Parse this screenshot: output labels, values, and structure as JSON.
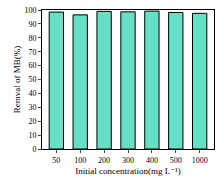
{
  "chart_data": {
    "type": "bar",
    "x_label": "Initial concentration(mg L⁻¹)",
    "y_label": "Remval of MB(%)",
    "categories": [
      "50",
      "100",
      "200",
      "300",
      "400",
      "500",
      "1000"
    ],
    "values": [
      98.5,
      96.5,
      99,
      98.7,
      99.2,
      98.2,
      97.6
    ],
    "color": "#66e0c4",
    "ylim": [
      0,
      100
    ],
    "yticks": [
      0,
      10,
      20,
      30,
      40,
      50,
      60,
      70,
      80,
      90,
      100
    ],
    "grid": false
  }
}
